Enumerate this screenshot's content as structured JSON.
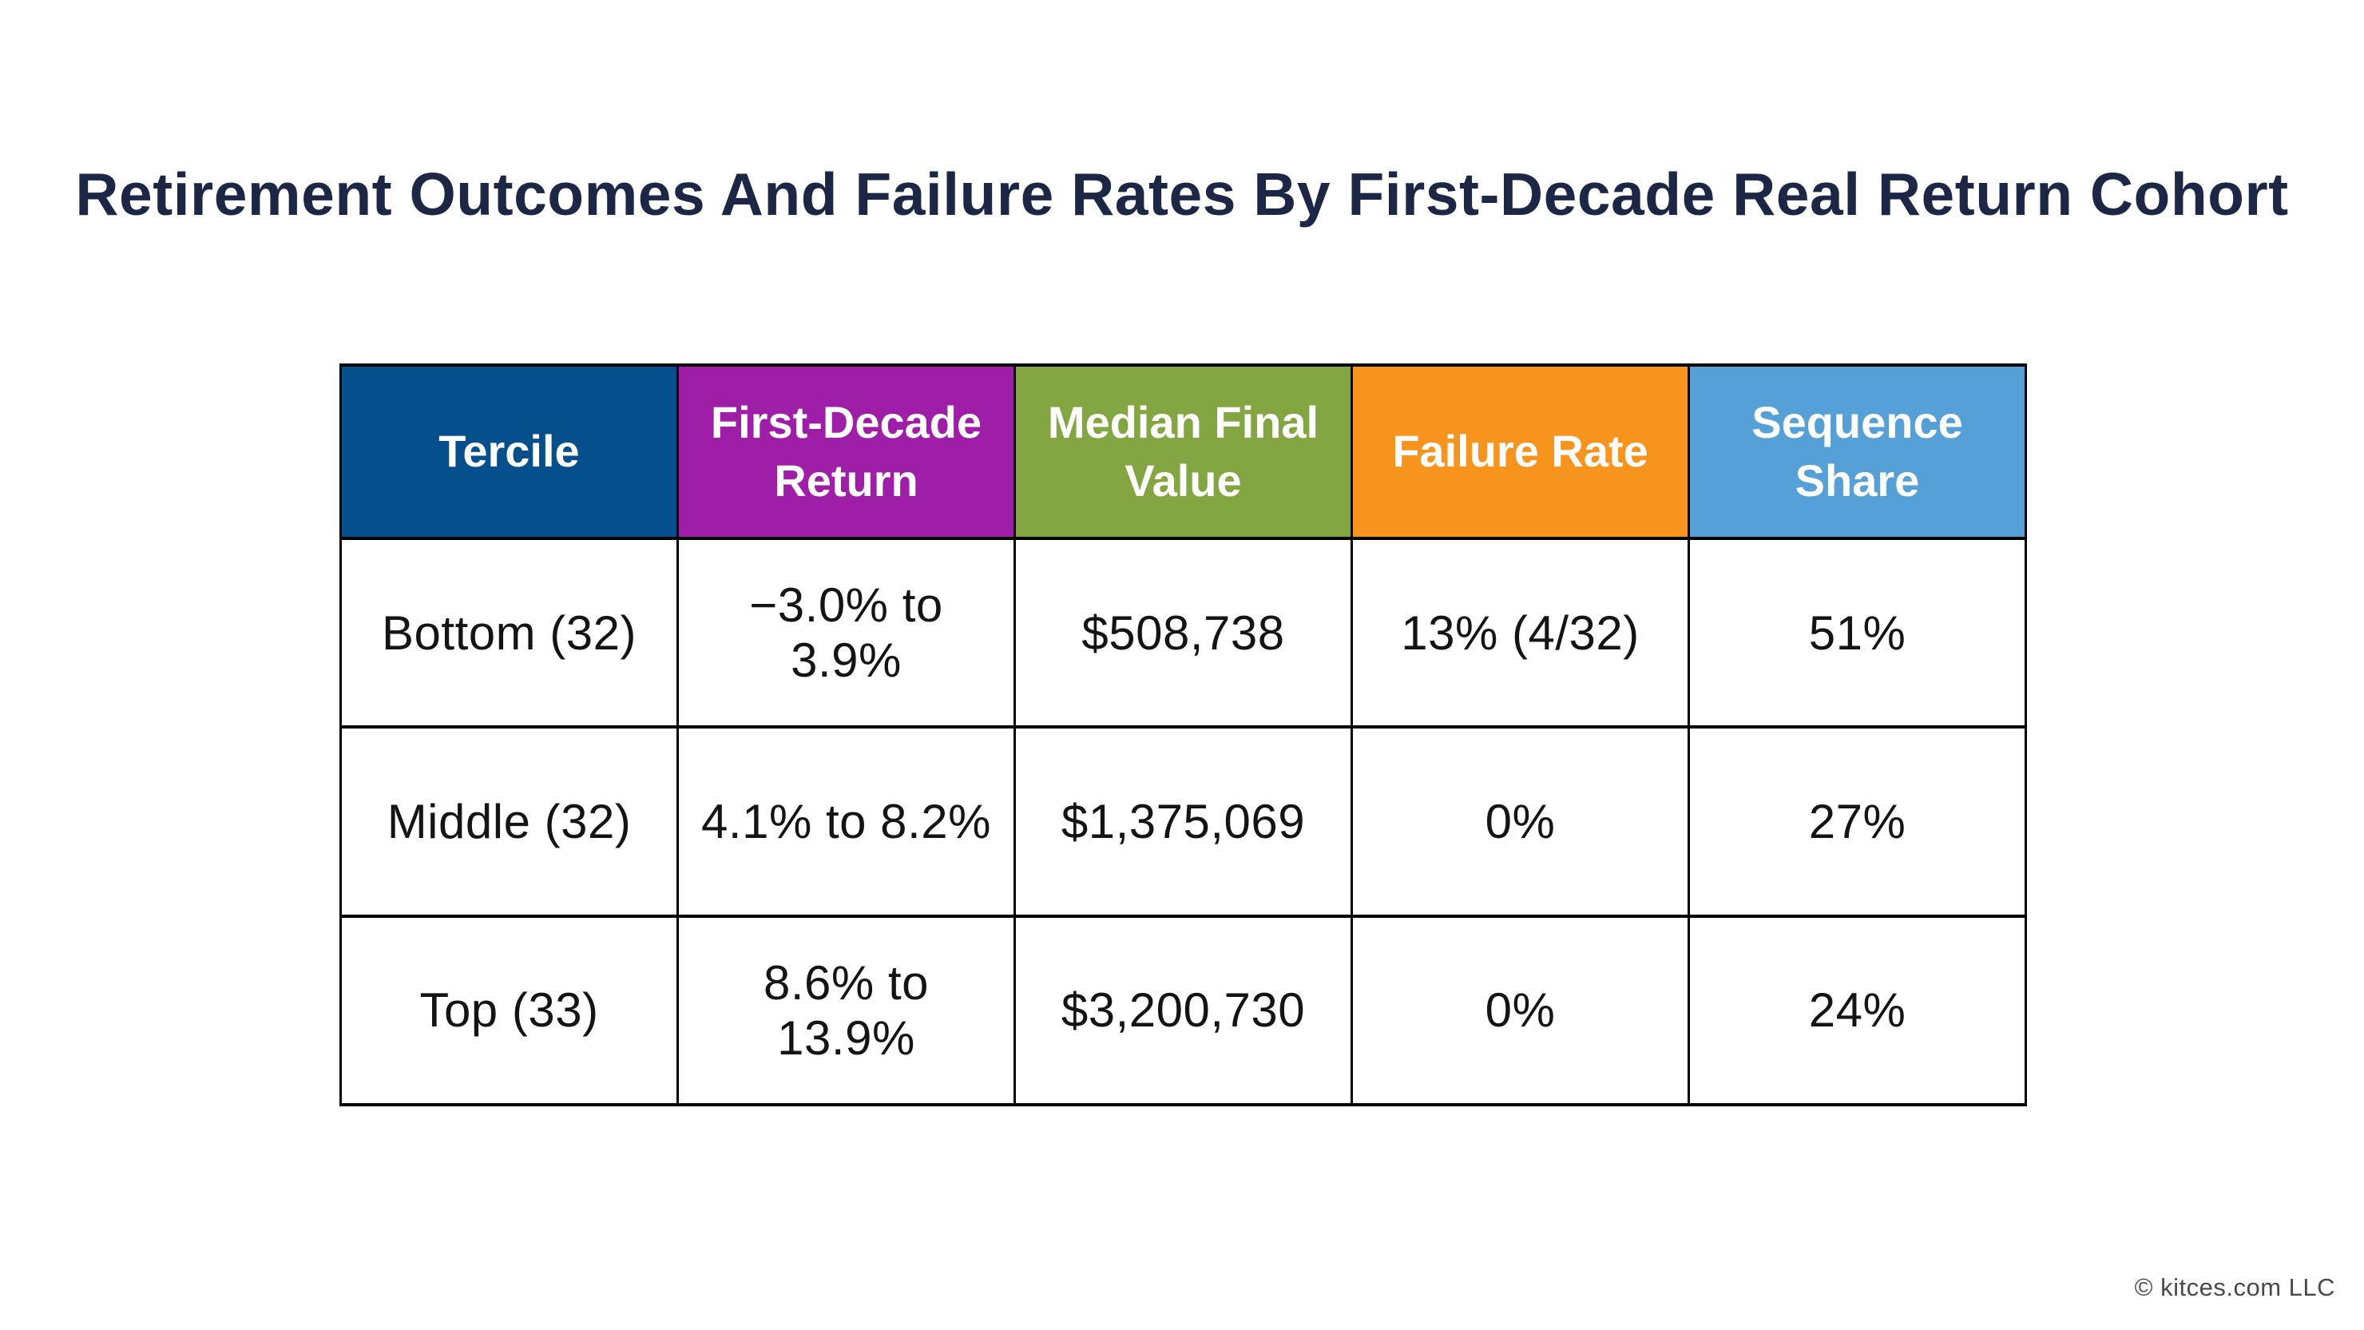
{
  "title": "Retirement Outcomes And Failure Rates By First-Decade Real Return Cohort",
  "footer": {
    "credit": "© kitces.com LLC"
  },
  "colors": {
    "title_navy": "#1b2744",
    "border_black": "#000000",
    "header_text": "#ffffff",
    "body_text": "#141414",
    "footer_gray": "#4a4a4a"
  },
  "chart_data": {
    "type": "table",
    "title": "Retirement Outcomes And Failure Rates By First-Decade Real Return Cohort",
    "columns": [
      {
        "label": "Tercile",
        "color": "#064f8d"
      },
      {
        "label": "First-Decade Return",
        "color": "#9e1ea8"
      },
      {
        "label": "Median Final Value",
        "color": "#84a642"
      },
      {
        "label": "Failure Rate",
        "color": "#f7941e"
      },
      {
        "label": "Sequence Share",
        "color": "#55a0d7"
      }
    ],
    "rows": [
      [
        "Bottom (32)",
        "−3.0% to 3.9%",
        "$508,738",
        "13% (4/32)",
        "51%"
      ],
      [
        "Middle (32)",
        "4.1% to 8.2%",
        "$1,375,069",
        "0%",
        "27%"
      ],
      [
        "Top (33)",
        "8.6% to 13.9%",
        "$3,200,730",
        "0%",
        "24%"
      ]
    ]
  }
}
